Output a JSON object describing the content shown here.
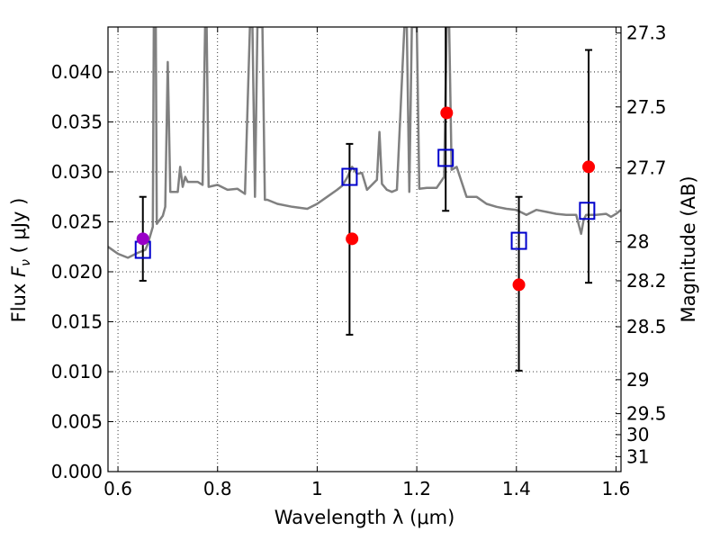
{
  "chart_data": {
    "type": "scatter",
    "xlabel": "Wavelength  λ (μm)",
    "ylabel": "Flux  F_ν  ( μJy )",
    "ylabel_parts": {
      "prefix": "Flux  ",
      "symbol": "F",
      "subscript": "ν",
      "unit": "  ( μJy )"
    },
    "y2label": "Magnitude (AB)",
    "xlim": [
      0.58,
      1.61
    ],
    "ylim": [
      0.0,
      0.0445
    ],
    "grid": true,
    "grid_style": "dotted",
    "x_ticks": [
      0.6,
      0.8,
      1.0,
      1.2,
      1.4,
      1.6
    ],
    "x_tick_labels": [
      "0.6",
      "0.8",
      "1",
      "1.2",
      "1.4",
      "1.6"
    ],
    "y_ticks": [
      0.0,
      0.005,
      0.01,
      0.015,
      0.02,
      0.025,
      0.03,
      0.035,
      0.04
    ],
    "y_tick_labels": [
      "0.000",
      "0.005",
      "0.010",
      "0.015",
      "0.020",
      "0.025",
      "0.030",
      "0.035",
      "0.040"
    ],
    "y2_ticks": [
      {
        "label": "27.3",
        "flux": 0.0439
      },
      {
        "label": "27.5",
        "flux": 0.0365
      },
      {
        "label": "27.7",
        "flux": 0.0304
      },
      {
        "label": "28",
        "flux": 0.023
      },
      {
        "label": "28.2",
        "flux": 0.0191
      },
      {
        "label": "28.5",
        "flux": 0.0145
      },
      {
        "label": "29",
        "flux": 0.0092
      },
      {
        "label": "29.5",
        "flux": 0.0058
      },
      {
        "label": "30",
        "flux": 0.0037
      },
      {
        "label": "31",
        "flux": 0.0015
      }
    ],
    "colors": {
      "model": "#808080",
      "observed": "#ff0000",
      "model_phot": "#0000cc",
      "combined": "#9a00c8",
      "errorbar": "#000000"
    },
    "series": [
      {
        "type": "line",
        "points": [
          [
            0.58,
            0.0225
          ],
          [
            0.6,
            0.0218
          ],
          [
            0.62,
            0.0214
          ],
          [
            0.64,
            0.0219
          ],
          [
            0.655,
            0.0222
          ],
          [
            0.66,
            0.0228
          ],
          [
            0.67,
            0.0245
          ],
          [
            0.672,
            0.0445
          ],
          [
            0.676,
            0.0445
          ],
          [
            0.678,
            0.0248
          ],
          [
            0.69,
            0.0256
          ],
          [
            0.695,
            0.0265
          ],
          [
            0.7,
            0.041
          ],
          [
            0.705,
            0.028
          ],
          [
            0.72,
            0.028
          ],
          [
            0.725,
            0.0305
          ],
          [
            0.73,
            0.0285
          ],
          [
            0.735,
            0.0295
          ],
          [
            0.74,
            0.029
          ],
          [
            0.76,
            0.029
          ],
          [
            0.77,
            0.0287
          ],
          [
            0.775,
            0.0445
          ],
          [
            0.778,
            0.0445
          ],
          [
            0.782,
            0.0285
          ],
          [
            0.8,
            0.0287
          ],
          [
            0.82,
            0.0282
          ],
          [
            0.84,
            0.0283
          ],
          [
            0.855,
            0.0278
          ],
          [
            0.865,
            0.0445
          ],
          [
            0.87,
            0.0445
          ],
          [
            0.875,
            0.0275
          ],
          [
            0.88,
            0.0445
          ],
          [
            0.89,
            0.0445
          ],
          [
            0.895,
            0.0272
          ],
          [
            0.9,
            0.0272
          ],
          [
            0.92,
            0.0268
          ],
          [
            0.95,
            0.0265
          ],
          [
            0.98,
            0.0263
          ],
          [
            1.0,
            0.0268
          ],
          [
            1.02,
            0.0275
          ],
          [
            1.04,
            0.0282
          ],
          [
            1.05,
            0.0286
          ],
          [
            1.06,
            0.0294
          ],
          [
            1.07,
            0.0305
          ],
          [
            1.08,
            0.0298
          ],
          [
            1.09,
            0.0299
          ],
          [
            1.1,
            0.0282
          ],
          [
            1.12,
            0.0292
          ],
          [
            1.125,
            0.034
          ],
          [
            1.13,
            0.0288
          ],
          [
            1.14,
            0.0282
          ],
          [
            1.15,
            0.028
          ],
          [
            1.16,
            0.0282
          ],
          [
            1.175,
            0.0445
          ],
          [
            1.18,
            0.0445
          ],
          [
            1.185,
            0.028
          ],
          [
            1.19,
            0.0445
          ],
          [
            1.2,
            0.0445
          ],
          [
            1.205,
            0.0283
          ],
          [
            1.22,
            0.0284
          ],
          [
            1.24,
            0.0284
          ],
          [
            1.255,
            0.0295
          ],
          [
            1.26,
            0.0445
          ],
          [
            1.265,
            0.0445
          ],
          [
            1.27,
            0.0302
          ],
          [
            1.28,
            0.0305
          ],
          [
            1.29,
            0.029
          ],
          [
            1.3,
            0.0275
          ],
          [
            1.32,
            0.0275
          ],
          [
            1.34,
            0.0268
          ],
          [
            1.36,
            0.0265
          ],
          [
            1.38,
            0.0263
          ],
          [
            1.4,
            0.0262
          ],
          [
            1.42,
            0.0257
          ],
          [
            1.44,
            0.0262
          ],
          [
            1.46,
            0.026
          ],
          [
            1.48,
            0.0258
          ],
          [
            1.5,
            0.0257
          ],
          [
            1.52,
            0.0257
          ],
          [
            1.53,
            0.0238
          ],
          [
            1.535,
            0.0252
          ],
          [
            1.54,
            0.0257
          ],
          [
            1.56,
            0.0257
          ],
          [
            1.58,
            0.0258
          ],
          [
            1.59,
            0.0255
          ],
          [
            1.6,
            0.0258
          ],
          [
            1.61,
            0.0262
          ]
        ]
      },
      {
        "type": "scatter",
        "marker": "filled-circle",
        "x": [
          1.07,
          1.26,
          1.405,
          1.545
        ],
        "y": [
          0.0233,
          0.0359,
          0.0187,
          0.0305
        ]
      },
      {
        "type": "scatter",
        "marker": "filled-circle",
        "x": [
          0.65
        ],
        "y": [
          0.0233
        ]
      },
      {
        "type": "scatter",
        "marker": "open-square",
        "x": [
          0.65,
          1.065,
          1.258,
          1.405,
          1.542
        ],
        "y": [
          0.0222,
          0.0295,
          0.0314,
          0.0231,
          0.0261
        ]
      },
      {
        "type": "errorbar",
        "x": [
          0.65,
          1.065,
          1.258,
          1.405,
          1.545
        ],
        "y_low": [
          0.0191,
          0.0137,
          0.0261,
          0.0101,
          0.0189
        ],
        "y_high": [
          0.0275,
          0.0328,
          0.0445,
          0.0275,
          0.0422
        ]
      }
    ]
  }
}
